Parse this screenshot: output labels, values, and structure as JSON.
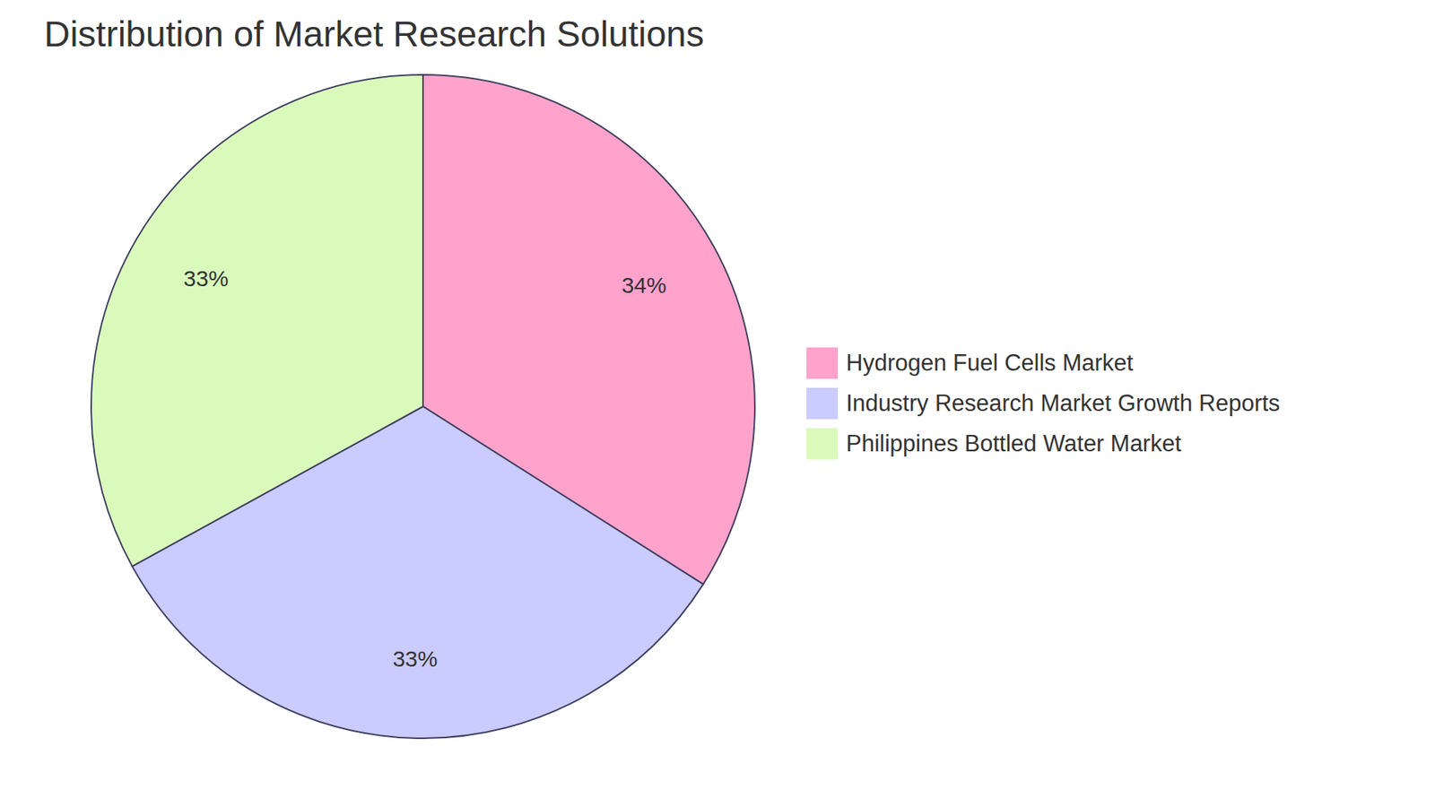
{
  "chart_data": {
    "type": "pie",
    "title": "Distribution of Market Research Solutions",
    "categories": [
      "Hydrogen Fuel Cells Market",
      "Industry Research Market Growth Reports",
      "Philippines Bottled Water Market"
    ],
    "values": [
      34,
      33,
      33
    ],
    "value_labels": [
      "34%",
      "33%",
      "33%"
    ],
    "colors": [
      "#ffa3cc",
      "#cacbff",
      "#dafabc"
    ],
    "data_labels": true,
    "legend": "right"
  }
}
